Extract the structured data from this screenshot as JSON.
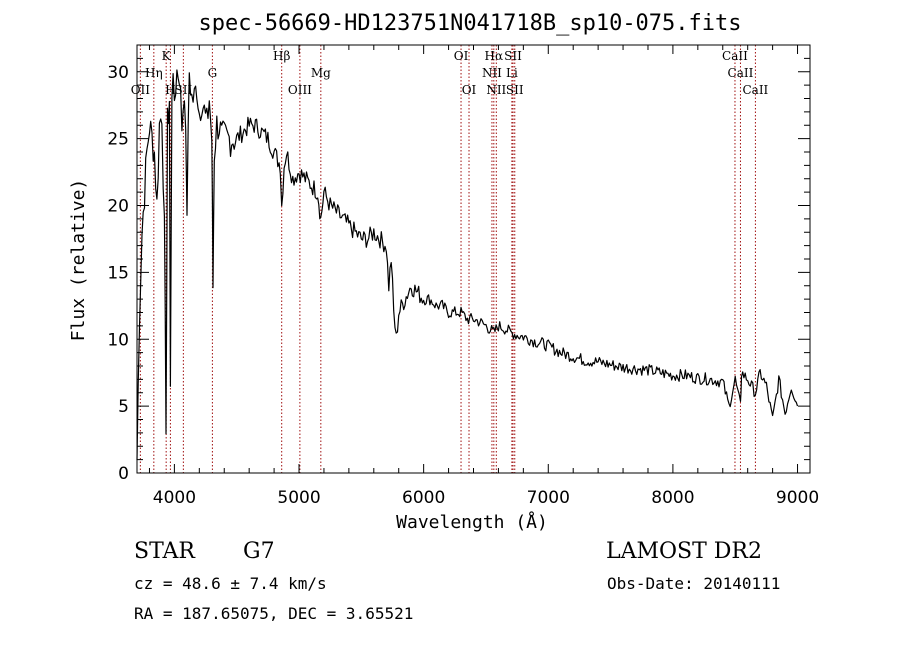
{
  "chart_data": {
    "type": "line",
    "title": "spec-56669-HD123751N041718B_sp10-075.fits",
    "xlabel": "Wavelength (Å)",
    "ylabel": "Flux (relative)",
    "xlim": [
      3700,
      9100
    ],
    "ylim": [
      0,
      32
    ],
    "xticks": [
      4000,
      5000,
      6000,
      7000,
      8000,
      9000
    ],
    "yticks": [
      0,
      5,
      10,
      15,
      20,
      25,
      30
    ],
    "grid": false,
    "series": [
      {
        "x": [
          3700,
          3720,
          3740,
          3760,
          3780,
          3800,
          3820,
          3840,
          3860,
          3880,
          3900,
          3920,
          3933,
          3945,
          3960,
          3968,
          3980,
          4000,
          4020,
          4040,
          4060,
          4080,
          4101,
          4120,
          4140,
          4160,
          4180,
          4200,
          4220,
          4240,
          4260,
          4280,
          4300,
          4310,
          4320,
          4340,
          4360,
          4380,
          4400,
          4450,
          4500,
          4550,
          4600,
          4650,
          4700,
          4750,
          4800,
          4850,
          4861,
          4880,
          4900,
          4950,
          5000,
          5050,
          5100,
          5150,
          5175,
          5200,
          5250,
          5300,
          5350,
          5400,
          5450,
          5500,
          5550,
          5600,
          5650,
          5700,
          5720,
          5740,
          5760,
          5780,
          5800,
          5850,
          5900,
          5950,
          6000,
          6050,
          6100,
          6150,
          6200,
          6250,
          6300,
          6350,
          6400,
          6450,
          6500,
          6563,
          6600,
          6650,
          6700,
          6750,
          6800,
          6850,
          6900,
          6950,
          7000,
          7100,
          7200,
          7300,
          7400,
          7500,
          7600,
          7700,
          7800,
          7900,
          8000,
          8100,
          8200,
          8300,
          8400,
          8450,
          8500,
          8542,
          8550,
          8600,
          8662,
          8700,
          8750,
          8800,
          8850,
          8900,
          8950,
          9000
        ],
        "y": [
          1,
          12,
          18,
          21,
          24,
          26,
          25,
          24,
          20,
          26,
          27,
          18,
          4,
          26,
          28,
          6,
          29,
          28,
          30,
          30,
          26,
          29,
          20,
          30,
          28,
          28,
          29,
          27,
          28,
          27,
          26,
          28,
          25,
          14,
          24,
          26,
          26,
          25,
          25,
          25,
          25,
          25.5,
          26,
          26,
          25.5,
          25,
          24,
          23,
          20,
          23,
          24,
          22,
          22.5,
          22,
          21.5,
          21,
          19,
          21,
          20,
          19.5,
          19,
          18.5,
          18,
          17.5,
          17.5,
          18,
          17.5,
          17,
          14,
          16,
          12,
          10,
          12,
          13,
          14,
          13.5,
          13,
          13,
          12.5,
          12.5,
          12,
          12,
          12,
          11.5,
          11.5,
          11.3,
          11,
          10.5,
          11,
          10.8,
          10.5,
          10.3,
          10.2,
          10,
          9.8,
          9.7,
          9.5,
          9,
          8.7,
          8.4,
          8.3,
          8.1,
          7.9,
          7.8,
          7.7,
          7.5,
          7.3,
          7.3,
          7.1,
          7,
          6.8,
          5,
          7,
          5,
          7.5,
          7,
          6,
          7.5,
          6.5,
          4,
          7,
          4.5,
          6.5,
          5
        ]
      }
    ],
    "lines": [
      {
        "name": "OII",
        "wavelength": 3727
      },
      {
        "name": "Hη",
        "wavelength": 3835
      },
      {
        "name": "K",
        "wavelength": 3934
      },
      {
        "name": "H",
        "wavelength": 3968
      },
      {
        "name": "SII",
        "wavelength": 4072
      },
      {
        "name": "G",
        "wavelength": 4305
      },
      {
        "name": "Hβ",
        "wavelength": 4861
      },
      {
        "name": "OIII",
        "wavelength": 5007
      },
      {
        "name": "Mg",
        "wavelength": 5175
      },
      {
        "name": "OI",
        "wavelength": 6300
      },
      {
        "name": "OI",
        "wavelength": 6364
      },
      {
        "name": "NII",
        "wavelength": 6548
      },
      {
        "name": "Hα",
        "wavelength": 6563
      },
      {
        "name": "NII",
        "wavelength": 6583
      },
      {
        "name": "Li",
        "wavelength": 6708
      },
      {
        "name": "SII",
        "wavelength": 6717
      },
      {
        "name": "SII",
        "wavelength": 6731
      },
      {
        "name": "CaII",
        "wavelength": 8498
      },
      {
        "name": "CaII",
        "wavelength": 8542
      },
      {
        "name": "CaII",
        "wavelength": 8662
      }
    ],
    "line_color": "#000000",
    "marker_line_color": "#a01010"
  },
  "info": {
    "class_label": "STAR",
    "subclass": "G7",
    "survey": "LAMOST DR2",
    "redshift": "cz = 48.6 ± 7.4 km/s",
    "obs_date": "Obs-Date: 20140111",
    "coords": "RA = 187.65075, DEC =    3.65521"
  }
}
